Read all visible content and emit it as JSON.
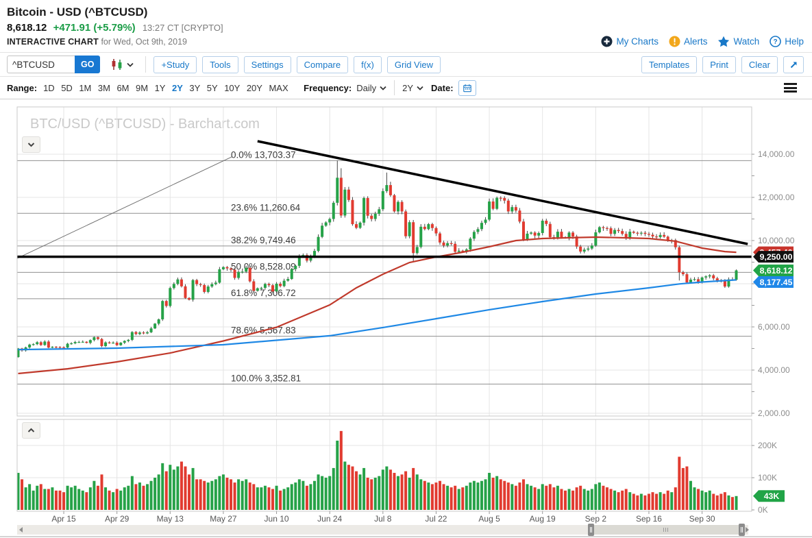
{
  "header": {
    "symbol_title": "Bitcoin - USD (^BTCUSD)",
    "last_price": "8,618.12",
    "change": "+471.91 (+5.79%)",
    "quote_time": "13:27 CT [CRYPTO]",
    "chart_label": "INTERACTIVE CHART",
    "chart_date": "for Wed, Oct 9th, 2019",
    "links": {
      "my_charts": "My Charts",
      "alerts": "Alerts",
      "watch": "Watch",
      "help": "Help"
    }
  },
  "toolbar": {
    "symbol_value": "^BTCUSD",
    "go_label": "GO",
    "buttons": [
      "+Study",
      "Tools",
      "Settings",
      "Compare",
      "f(x)",
      "Grid View"
    ],
    "right_buttons": [
      "Templates",
      "Print",
      "Clear"
    ]
  },
  "range_bar": {
    "range_label": "Range:",
    "items": [
      "1D",
      "5D",
      "1M",
      "3M",
      "6M",
      "9M",
      "1Y",
      "2Y",
      "3Y",
      "5Y",
      "10Y",
      "20Y",
      "MAX"
    ],
    "active": "2Y",
    "frequency_label": "Frequency:",
    "frequency_value": "Daily",
    "period_value": "2Y",
    "date_label": "Date:"
  },
  "chart": {
    "watermark": "BTC/USD (^BTCUSD) - Barchart.com"
  },
  "chart_data": {
    "type": "candlestick",
    "symbol": "^BTCUSD",
    "frequency": "Daily",
    "x_labels": [
      "Apr 15",
      "Apr 29",
      "May 13",
      "May 27",
      "Jun 10",
      "Jun 24",
      "Jul 8",
      "Jul 22",
      "Aug 5",
      "Aug 19",
      "Sep 2",
      "Sep 16",
      "Sep 30"
    ],
    "x_label_day_index": [
      12,
      26,
      40,
      54,
      68,
      82,
      96,
      110,
      124,
      138,
      152,
      166,
      180
    ],
    "first_open": 4600,
    "closes": [
      5000,
      4910,
      5050,
      5180,
      5200,
      5290,
      5160,
      5320,
      5040,
      5080,
      5070,
      5060,
      5040,
      5220,
      5240,
      5300,
      5300,
      5310,
      5260,
      5390,
      5520,
      5440,
      5110,
      5280,
      5260,
      5270,
      5150,
      5270,
      5350,
      5400,
      5760,
      5670,
      5740,
      5700,
      5750,
      5930,
      6150,
      6350,
      7200,
      6970,
      7800,
      7990,
      8200,
      7880,
      7340,
      7260,
      8170,
      7980,
      7940,
      7620,
      7870,
      7980,
      8050,
      8670,
      8770,
      8710,
      8650,
      8270,
      8550,
      8560,
      8740,
      8110,
      7670,
      7790,
      7810,
      7990,
      7930,
      7640,
      8000,
      7890,
      8140,
      8220,
      8680,
      8830,
      9300,
      9330,
      9070,
      9260,
      9520,
      10170,
      10690,
      10840,
      11000,
      11750,
      12910,
      11160,
      12360,
      11880,
      10760,
      10590,
      10830,
      11970,
      11150,
      11000,
      11240,
      11450,
      12290,
      12570,
      12100,
      11350,
      11790,
      11350,
      10200,
      10850,
      9420,
      9700,
      10640,
      10530,
      10760,
      10580,
      10330,
      9910,
      9770,
      9880,
      9850,
      9480,
      9530,
      9510,
      9590,
      10090,
      10400,
      10530,
      10820,
      10970,
      11810,
      11470,
      11980,
      11970,
      11850,
      11350,
      11550,
      11390,
      10880,
      10040,
      10320,
      10370,
      10230,
      10350,
      10920,
      10770,
      10160,
      10120,
      10410,
      10150,
      10140,
      10370,
      10190,
      9720,
      9490,
      9580,
      9630,
      9770,
      10380,
      10620,
      10580,
      10570,
      10310,
      10490,
      10440,
      10310,
      10100,
      10410,
      10360,
      10350,
      10360,
      10310,
      10270,
      10190,
      10160,
      10260,
      10180,
      9990,
      10020,
      9690,
      8530,
      8440,
      8060,
      8190,
      8210,
      8050,
      8290,
      8340,
      8390,
      8250,
      8140,
      8130,
      7870,
      8200,
      8180,
      8618
    ],
    "volumes_k": [
      115,
      95,
      70,
      80,
      60,
      75,
      80,
      65,
      65,
      70,
      60,
      60,
      55,
      75,
      70,
      75,
      65,
      60,
      55,
      70,
      90,
      75,
      110,
      70,
      60,
      55,
      65,
      60,
      70,
      75,
      105,
      80,
      85,
      75,
      80,
      90,
      100,
      110,
      145,
      120,
      140,
      125,
      135,
      150,
      135,
      110,
      130,
      95,
      95,
      90,
      85,
      90,
      95,
      105,
      110,
      100,
      95,
      85,
      95,
      90,
      95,
      85,
      80,
      70,
      70,
      75,
      70,
      65,
      75,
      60,
      65,
      70,
      80,
      85,
      95,
      90,
      75,
      80,
      90,
      110,
      105,
      100,
      105,
      130,
      215,
      245,
      150,
      140,
      135,
      120,
      110,
      130,
      100,
      95,
      100,
      105,
      125,
      135,
      125,
      115,
      105,
      110,
      120,
      100,
      130,
      110,
      95,
      90,
      85,
      80,
      85,
      90,
      80,
      75,
      70,
      75,
      65,
      70,
      75,
      85,
      90,
      85,
      90,
      95,
      115,
      100,
      105,
      95,
      90,
      85,
      80,
      75,
      85,
      95,
      80,
      75,
      70,
      65,
      80,
      75,
      80,
      70,
      75,
      65,
      60,
      65,
      60,
      70,
      75,
      65,
      60,
      65,
      80,
      85,
      75,
      70,
      65,
      60,
      55,
      60,
      65,
      55,
      50,
      45,
      50,
      45,
      50,
      55,
      50,
      55,
      50,
      60,
      55,
      70,
      165,
      130,
      135,
      90,
      70,
      65,
      60,
      55,
      60,
      50,
      45,
      50,
      55,
      45,
      40,
      43
    ],
    "wick_high_overrides": {
      "84": 13703.37,
      "85": 13350,
      "97": 13150
    },
    "wick_low_overrides": {
      "104": 9050,
      "174": 8150
    },
    "colors": {
      "up": "#26a248",
      "down": "#e13b30",
      "wick": "#444444"
    },
    "fib_levels": [
      {
        "label": "0.0% 13,703.37",
        "price": 13703.37
      },
      {
        "label": "23.6% 11,260.64",
        "price": 11260.64
      },
      {
        "label": "38.2% 9,749.46",
        "price": 9749.46
      },
      {
        "label": "50.0% 8,528.09",
        "price": 8528.09
      },
      {
        "label": "61.8% 7,306.72",
        "price": 7306.72
      },
      {
        "label": "78.6% 5,567.83",
        "price": 5567.83
      },
      {
        "label": "100.0% 3,352.81",
        "price": 3352.81
      }
    ],
    "trendlines": [
      {
        "name": "ascending-trendline",
        "day1": -0.3,
        "price1": 9175,
        "day2": 56.2,
        "price2": 13874,
        "color": "#6e6e6e",
        "width": 1,
        "layer": "under"
      },
      {
        "name": "support-horizontal-line",
        "day1": -0.3,
        "price1": 9250,
        "day2": 194,
        "price2": 9250,
        "color": "#000000",
        "width": 3.5,
        "layer": "over"
      },
      {
        "name": "resistance-trendline",
        "day1": 63,
        "price1": 14604,
        "day2": 192,
        "price2": 9841,
        "color": "#000000",
        "width": 3.5,
        "layer": "over"
      }
    ],
    "moving_averages": [
      {
        "name": "red-moving-average",
        "color": "#c0392b",
        "points": [
          [
            0,
            3840
          ],
          [
            13,
            4060
          ],
          [
            26,
            4380
          ],
          [
            40,
            4790
          ],
          [
            54,
            5350
          ],
          [
            68,
            5985
          ],
          [
            82,
            7020
          ],
          [
            89,
            7810
          ],
          [
            96,
            8440
          ],
          [
            103,
            8985
          ],
          [
            110,
            9240
          ],
          [
            117,
            9460
          ],
          [
            124,
            9715
          ],
          [
            131,
            10000
          ],
          [
            138,
            10095
          ],
          [
            145,
            10130
          ],
          [
            152,
            10160
          ],
          [
            159,
            10130
          ],
          [
            166,
            10095
          ],
          [
            173,
            9970
          ],
          [
            180,
            9650
          ],
          [
            186,
            9490
          ],
          [
            189,
            9457
          ]
        ]
      },
      {
        "name": "blue-moving-average",
        "color": "#1e88e5",
        "points": [
          [
            0,
            4950
          ],
          [
            26,
            5015
          ],
          [
            54,
            5175
          ],
          [
            82,
            5590
          ],
          [
            96,
            5970
          ],
          [
            110,
            6380
          ],
          [
            124,
            6795
          ],
          [
            138,
            7175
          ],
          [
            152,
            7525
          ],
          [
            166,
            7810
          ],
          [
            174,
            7990
          ],
          [
            180,
            8080
          ],
          [
            189,
            8177
          ]
        ]
      }
    ],
    "price_axis_labels": [
      {
        "text": "14,000.00",
        "price": 14000
      },
      {
        "text": "12,000.00",
        "price": 12000
      },
      {
        "text": "10,000.00",
        "price": 10000
      },
      {
        "text": "8,000.00",
        "price": 8000
      },
      {
        "text": "6,000.00",
        "price": 6000
      },
      {
        "text": "4,000.00",
        "price": 4000
      },
      {
        "text": "2,000.00",
        "price": 2000
      }
    ],
    "volume_axis_labels": [
      {
        "text": "200K",
        "value_k": 200
      },
      {
        "text": "100K",
        "value_k": 100
      },
      {
        "text": "0K",
        "value_k": 0
      }
    ],
    "price_tags": [
      {
        "text": "9,457.40",
        "price": 9457.4,
        "bg": "#c8342c",
        "overlap": false
      },
      {
        "text": "9,250.00",
        "price": 9250.0,
        "bg": "#111111",
        "overlap": true
      },
      {
        "text": "8,618.12",
        "price": 8618.12,
        "bg": "#21a447",
        "overlap": false
      },
      {
        "text": "8,177.45",
        "price": 8177.45,
        "bg": "#1f87e8",
        "overlap": false
      }
    ],
    "volume_tag": {
      "text": "43K",
      "value_k": 43,
      "bg": "#21a447"
    }
  }
}
